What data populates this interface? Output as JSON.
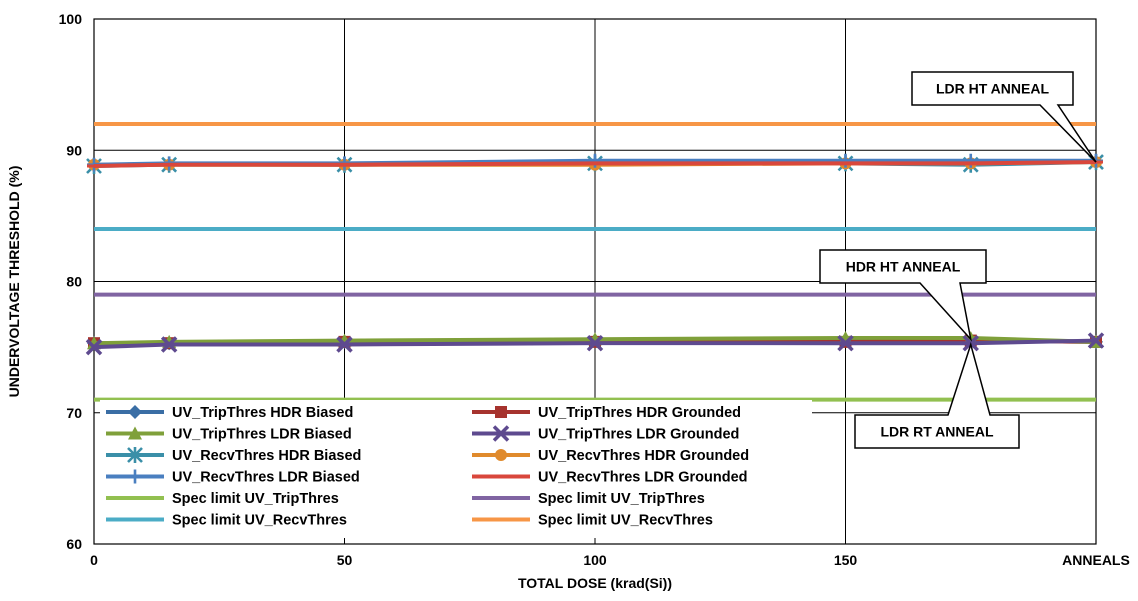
{
  "chart_data": {
    "type": "line",
    "xlabel": "TOTAL DOSE (krad(Si))",
    "ylabel": "UNDERVOLTAGE THRESHOLD (%)",
    "ylim": [
      60,
      100
    ],
    "xlim": [
      0,
      200
    ],
    "x_ticks": [
      {
        "x": 0,
        "label": "0"
      },
      {
        "x": 50,
        "label": "50"
      },
      {
        "x": 100,
        "label": "100"
      },
      {
        "x": 150,
        "label": "150"
      },
      {
        "x": 200,
        "label": "ANNEALS"
      }
    ],
    "y_ticks": [
      60,
      70,
      80,
      90,
      100
    ],
    "grid": true,
    "x": [
      0,
      15,
      50,
      100,
      150,
      175,
      200
    ],
    "series": [
      {
        "name": "UV_TripThres HDR Biased",
        "color": "#3a6ea5",
        "marker": "diamond",
        "values": [
          75.3,
          75.3,
          75.4,
          75.5,
          75.5,
          75.5,
          75.4
        ]
      },
      {
        "name": "UV_TripThres HDR Grounded",
        "color": "#a6332e",
        "marker": "square",
        "values": [
          75.3,
          75.3,
          75.4,
          75.4,
          75.4,
          75.5,
          75.4
        ]
      },
      {
        "name": "UV_TripThres LDR Biased",
        "color": "#7fa03a",
        "marker": "triangle",
        "values": [
          75.3,
          75.4,
          75.5,
          75.6,
          75.7,
          75.7,
          75.4
        ]
      },
      {
        "name": "UV_TripThres LDR Grounded",
        "color": "#5e4a8f",
        "marker": "x",
        "values": [
          75.0,
          75.2,
          75.2,
          75.3,
          75.3,
          75.3,
          75.5
        ]
      },
      {
        "name": "UV_RecvThres HDR Biased",
        "color": "#3a8fa8",
        "marker": "star",
        "values": [
          88.8,
          88.9,
          88.9,
          89.0,
          89.0,
          88.9,
          89.1
        ]
      },
      {
        "name": "UV_RecvThres HDR Grounded",
        "color": "#e08a2c",
        "marker": "circle",
        "values": [
          88.9,
          88.9,
          88.9,
          88.9,
          89.0,
          89.0,
          89.1
        ]
      },
      {
        "name": "UV_RecvThres LDR Biased",
        "color": "#4a7fc0",
        "marker": "plus",
        "values": [
          88.9,
          89.0,
          89.0,
          89.2,
          89.2,
          89.2,
          89.2
        ]
      },
      {
        "name": "UV_RecvThres LDR Grounded",
        "color": "#d9473c",
        "marker": "dash",
        "values": [
          88.8,
          88.9,
          88.9,
          89.0,
          89.0,
          89.0,
          89.1
        ]
      },
      {
        "name": "Spec limit UV_TripThres",
        "color": "#92c050",
        "marker": "none",
        "values": [
          71,
          71,
          71,
          71,
          71,
          71,
          71
        ]
      },
      {
        "name": "Spec limit UV_TripThres",
        "color": "#8064a2",
        "marker": "none",
        "values": [
          79,
          79,
          79,
          79,
          79,
          79,
          79
        ]
      },
      {
        "name": "Spec limit UV_RecvThres",
        "color": "#4bacc6",
        "marker": "none",
        "values": [
          84,
          84,
          84,
          84,
          84,
          84,
          84
        ]
      },
      {
        "name": "Spec limit UV_RecvThres",
        "color": "#f79646",
        "marker": "none",
        "values": [
          92,
          92,
          92,
          92,
          92,
          92,
          92
        ]
      }
    ],
    "legend_order": [
      0,
      1,
      2,
      3,
      4,
      5,
      6,
      7,
      8,
      9,
      10,
      11
    ],
    "legend_placement": "bottom-left, two columns",
    "annotations": [
      {
        "text": "LDR HT ANNEAL",
        "target": [
          200,
          89.1
        ]
      },
      {
        "text": "HDR HT ANNEAL",
        "target": [
          175,
          75.6
        ]
      },
      {
        "text": "LDR RT ANNEAL",
        "target": [
          175,
          75.2
        ]
      }
    ]
  }
}
